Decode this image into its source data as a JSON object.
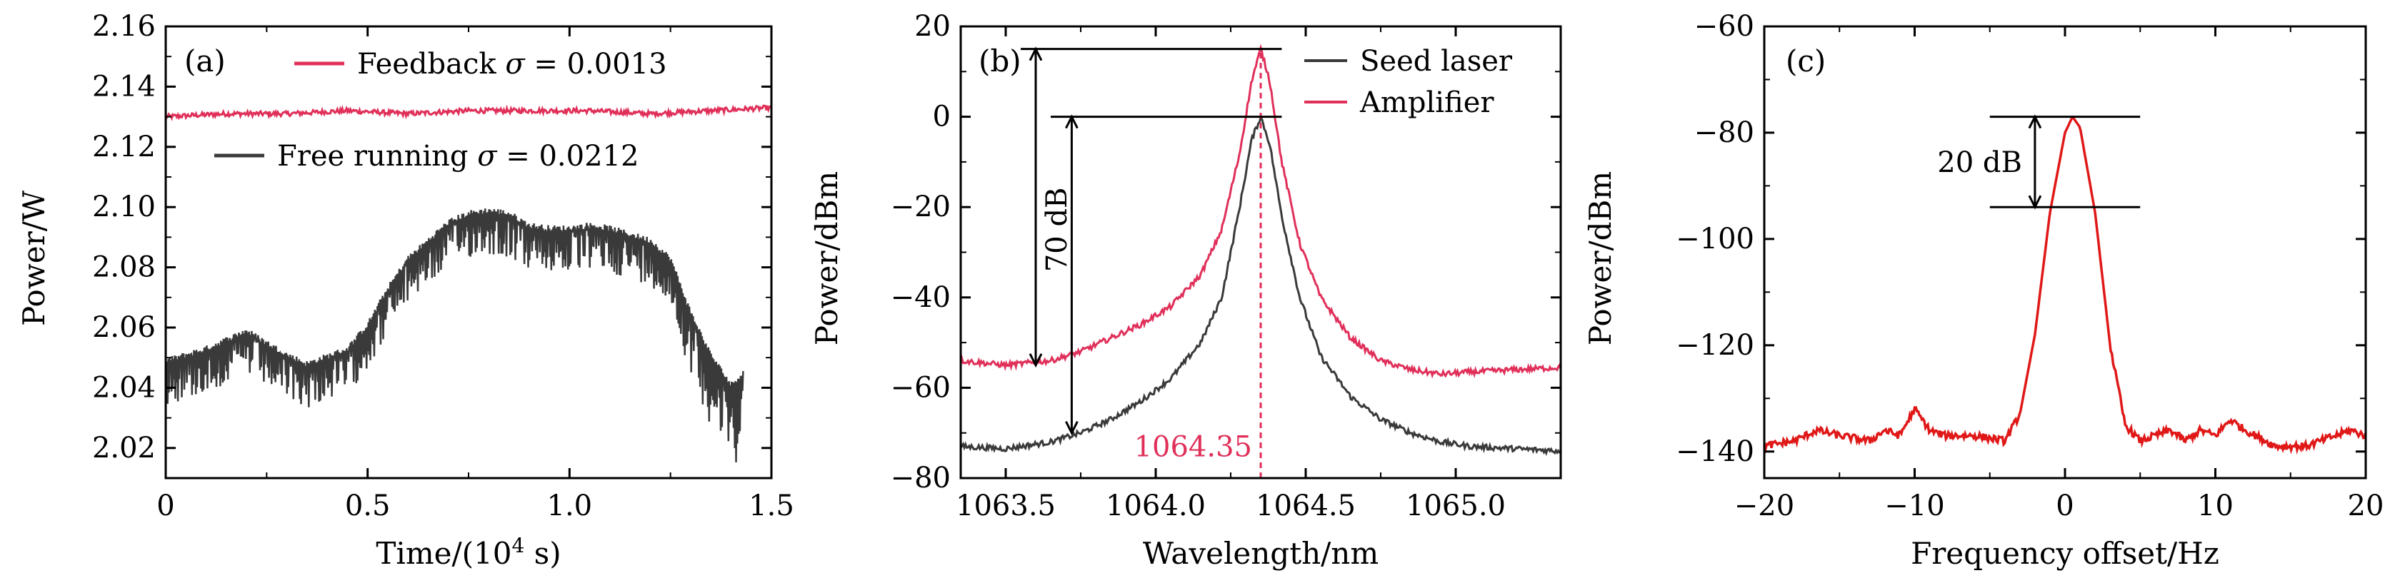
{
  "chart_data": [
    {
      "panel": "(a)",
      "type": "line",
      "xlabel_prefix": "Time/(10",
      "xlabel_sup": "4",
      "xlabel_suffix": " s)",
      "ylabel": "Power/W",
      "xlim": [
        0,
        1.5
      ],
      "ylim": [
        2.01,
        2.16
      ],
      "xticks": [
        "0",
        "0.5",
        "1.0",
        "1.5"
      ],
      "xtick_values": [
        0,
        0.5,
        1.0,
        1.5
      ],
      "yticks": [
        "2.02",
        "2.04",
        "2.06",
        "2.08",
        "2.10",
        "2.12",
        "2.14",
        "2.16"
      ],
      "ytick_values": [
        2.02,
        2.04,
        2.06,
        2.08,
        2.1,
        2.12,
        2.14,
        2.16
      ],
      "legend_position": "top",
      "series": [
        {
          "label_prefix": "Feedback ",
          "label_sigma": "σ",
          "label_suffix": " = 0.0013",
          "color": "#e0305a",
          "x": [
            0,
            0.15,
            0.3,
            0.45,
            0.6,
            0.75,
            0.9,
            1.05,
            1.2,
            1.35,
            1.5
          ],
          "y": [
            2.13,
            2.131,
            2.131,
            2.132,
            2.131,
            2.132,
            2.132,
            2.132,
            2.131,
            2.132,
            2.133
          ]
        },
        {
          "label_prefix": "Free running ",
          "label_sigma": "σ",
          "label_suffix": " = 0.0212",
          "color": "#3a3a3a",
          "x": [
            0,
            0.1,
            0.2,
            0.3,
            0.35,
            0.45,
            0.5,
            0.55,
            0.6,
            0.65,
            0.7,
            0.75,
            0.8,
            0.85,
            0.9,
            0.95,
            1.0,
            1.05,
            1.1,
            1.15,
            1.2,
            1.25,
            1.3,
            1.35,
            1.4,
            1.43
          ],
          "y": [
            2.048,
            2.052,
            2.058,
            2.05,
            2.047,
            2.052,
            2.06,
            2.072,
            2.082,
            2.088,
            2.094,
            2.097,
            2.098,
            2.097,
            2.093,
            2.092,
            2.092,
            2.093,
            2.092,
            2.09,
            2.088,
            2.082,
            2.064,
            2.05,
            2.04,
            2.044
          ],
          "noise_amplitude_lower": 0.01,
          "noise_amplitude_lower_end": 0.02
        }
      ]
    },
    {
      "panel": "(b)",
      "type": "line",
      "xlabel": "Wavelength/nm",
      "ylabel": "Power/dBm",
      "xlim": [
        1063.35,
        1065.35
      ],
      "ylim": [
        -80,
        20
      ],
      "xticks": [
        "1063.5",
        "1064.0",
        "1064.5",
        "1065.0"
      ],
      "xtick_values": [
        1063.5,
        1064.0,
        1064.5,
        1065.0
      ],
      "yticks": [
        "−80",
        "−60",
        "−40",
        "−20",
        "0",
        "20"
      ],
      "ytick_values": [
        -80,
        -60,
        -40,
        -20,
        0,
        20
      ],
      "legend_position": "top-right",
      "series": [
        {
          "name": "Seed laser",
          "color": "#3a3a3a",
          "x": [
            1063.35,
            1063.5,
            1063.65,
            1063.75,
            1063.85,
            1063.95,
            1064.05,
            1064.15,
            1064.22,
            1064.28,
            1064.32,
            1064.35,
            1064.38,
            1064.42,
            1064.48,
            1064.55,
            1064.65,
            1064.75,
            1064.85,
            1064.95,
            1065.05,
            1065.2,
            1065.35
          ],
          "y": [
            -73,
            -73.5,
            -72,
            -70,
            -67,
            -63,
            -58,
            -50,
            -40,
            -20,
            -5,
            0,
            -6,
            -22,
            -40,
            -53,
            -62,
            -67,
            -70,
            -72,
            -73,
            -73.5,
            -74
          ]
        },
        {
          "name": "Amplifier",
          "color": "#e0305a",
          "x": [
            1063.35,
            1063.5,
            1063.65,
            1063.75,
            1063.85,
            1063.95,
            1064.05,
            1064.15,
            1064.22,
            1064.28,
            1064.32,
            1064.35,
            1064.38,
            1064.42,
            1064.48,
            1064.55,
            1064.65,
            1064.75,
            1064.85,
            1064.95,
            1065.05,
            1065.2,
            1065.35
          ],
          "y": [
            -54,
            -55,
            -54,
            -52,
            -49,
            -46,
            -42,
            -35,
            -25,
            -8,
            8,
            15,
            8,
            -10,
            -28,
            -40,
            -49,
            -54,
            -56,
            -57,
            -56.5,
            -56,
            -55.5
          ]
        }
      ],
      "annotations": {
        "db_label": "70 dB",
        "peak_label": "1064.35",
        "peak_label_color": "#e0305a",
        "peak_x": 1064.35
      }
    },
    {
      "panel": "(c)",
      "type": "line",
      "xlabel": "Frequency offset/Hz",
      "ylabel": "Power/dBm",
      "xlim": [
        -20,
        20
      ],
      "ylim": [
        -145,
        -60
      ],
      "xticks": [
        "−20",
        "−10",
        "0",
        "10",
        "20"
      ],
      "xtick_values": [
        -20,
        -10,
        0,
        10,
        20
      ],
      "yticks": [
        "−140",
        "−120",
        "−100",
        "−80",
        "−60"
      ],
      "ytick_values": [
        -140,
        -120,
        -100,
        -80,
        -60
      ],
      "series": [
        {
          "color": "#e01818",
          "x": [
            -20,
            -18,
            -16.5,
            -15,
            -13,
            -12,
            -11,
            -10,
            -9,
            -8,
            -6,
            -4,
            -3,
            -2,
            -1,
            0,
            0.5,
            1,
            2,
            3,
            4,
            5,
            6,
            7,
            8,
            9,
            10,
            11,
            12,
            14,
            16,
            18,
            19,
            20
          ],
          "y": [
            -139,
            -138,
            -136,
            -137,
            -138,
            -136,
            -137,
            -132,
            -136,
            -137,
            -137,
            -138,
            -133,
            -118,
            -95,
            -80,
            -77,
            -79,
            -95,
            -120,
            -135,
            -138,
            -137,
            -136,
            -138,
            -136,
            -137,
            -134,
            -136,
            -139,
            -139,
            -137,
            -136,
            -137
          ]
        }
      ],
      "annotations": {
        "db_label": "20 dB"
      }
    }
  ]
}
